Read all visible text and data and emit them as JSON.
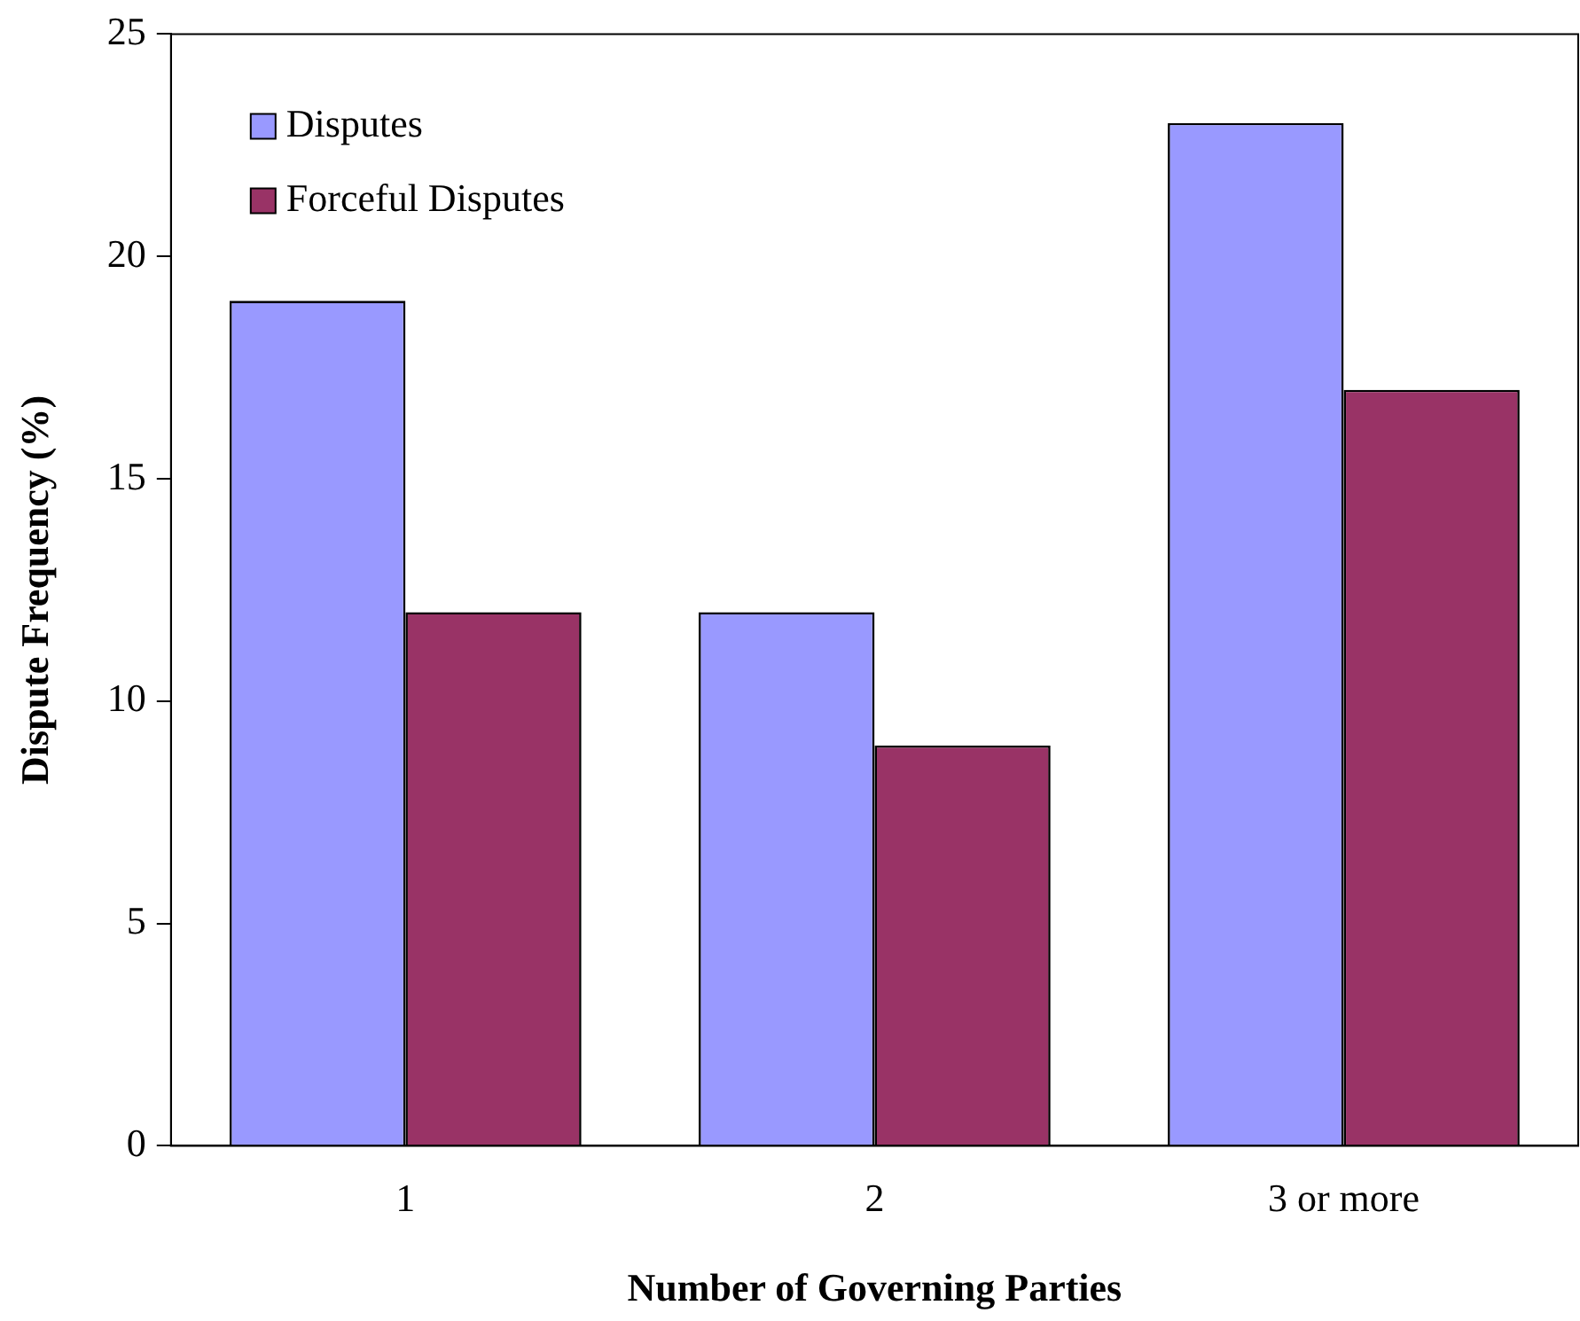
{
  "chart_data": {
    "type": "bar",
    "xlabel": "Number of Governing Parties",
    "ylabel": "Dispute Frequency (%)",
    "categories": [
      "1",
      "2",
      "3 or more"
    ],
    "series": [
      {
        "name": "Disputes",
        "color": "#9999ff",
        "values": [
          19,
          12,
          23
        ]
      },
      {
        "name": "Forceful Disputes",
        "color": "#993366",
        "values": [
          12,
          9,
          17
        ]
      }
    ],
    "ylim": [
      0,
      25
    ],
    "yticks": [
      0,
      5,
      10,
      15,
      20,
      25
    ],
    "grid": false,
    "legend": "top left"
  }
}
